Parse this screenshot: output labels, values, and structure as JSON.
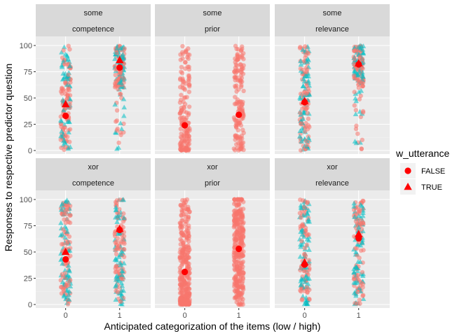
{
  "chart_data": {
    "type": "scatter",
    "xlabel": "Anticipated categorization of the items (low / high)",
    "ylabel": "Responses to respective predictor question",
    "x_ticks": [
      "0",
      "1"
    ],
    "y_ticks": [
      "0",
      "25",
      "50",
      "75",
      "100"
    ],
    "ylim": [
      0,
      100
    ],
    "grid": true,
    "legend": {
      "title": "w_utterance",
      "position": "right",
      "entries": [
        {
          "label": "FALSE",
          "shape": "circle",
          "color": "#F8766D"
        },
        {
          "label": "TRUE",
          "shape": "triangle",
          "color": "#00BFC4"
        }
      ]
    },
    "mean_marker_color": "#FF0000",
    "panels": [
      {
        "strip_top": "some",
        "strip_bottom": "competence",
        "row": 0,
        "col": 0,
        "means": {
          "FALSE": {
            "0": 33,
            "1": 79
          },
          "TRUE": {
            "0": 44,
            "1": 86
          }
        }
      },
      {
        "strip_top": "some",
        "strip_bottom": "prior",
        "row": 0,
        "col": 1,
        "means": {
          "FALSE": {
            "0": 24,
            "1": 34
          }
        }
      },
      {
        "strip_top": "some",
        "strip_bottom": "relevance",
        "row": 0,
        "col": 2,
        "means": {
          "FALSE": {
            "0": 46,
            "1": 82
          },
          "TRUE": {
            "0": 47,
            "1": 83
          }
        }
      },
      {
        "strip_top": "xor",
        "strip_bottom": "competence",
        "row": 1,
        "col": 0,
        "means": {
          "FALSE": {
            "0": 43,
            "1": 71
          },
          "TRUE": {
            "0": 50,
            "1": 72
          }
        }
      },
      {
        "strip_top": "xor",
        "strip_bottom": "prior",
        "row": 1,
        "col": 1,
        "means": {
          "FALSE": {
            "0": 31,
            "1": 53
          }
        }
      },
      {
        "strip_top": "xor",
        "strip_bottom": "relevance",
        "row": 1,
        "col": 2,
        "means": {
          "FALSE": {
            "0": 38,
            "1": 63
          },
          "TRUE": {
            "0": 40,
            "1": 67
          }
        }
      }
    ]
  }
}
